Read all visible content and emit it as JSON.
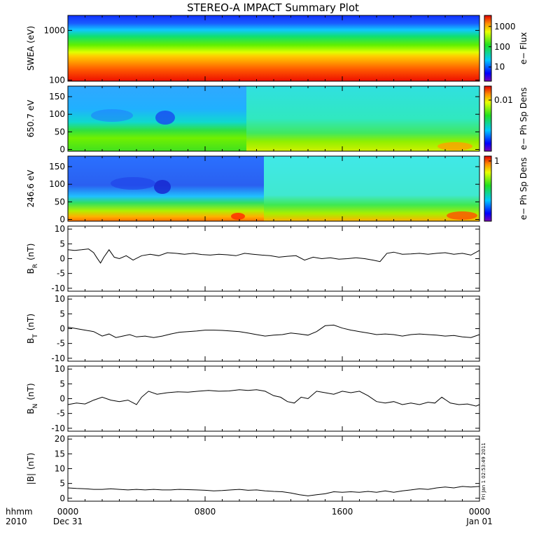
{
  "chart_data": {
    "type": "line",
    "title": "STEREO-A IMPACT Summary Plot",
    "x": {
      "corner_labels": [
        "hhmm",
        "2010"
      ],
      "tick_labels": [
        "0000",
        "0800",
        "1600",
        "0000"
      ],
      "tick_hours": [
        0,
        8,
        16,
        24
      ],
      "date_labels": [
        {
          "hour": 0,
          "label": "Dec 31"
        },
        {
          "hour": 24,
          "label": "Jan 01"
        }
      ],
      "range_hours": [
        0,
        24
      ]
    },
    "timestamp": "Fri Jan 1 02:53:49 2011",
    "panels": [
      {
        "kind": "spectrogram",
        "ylabel": "SWEA (eV)",
        "yscale": "log",
        "ylim": [
          95,
          2000
        ],
        "yticks": [
          {
            "value": 100,
            "label": "100"
          },
          {
            "value": 1000,
            "label": "1000"
          }
        ],
        "colorbar_label": "e− Flux",
        "colorbar_scale": "log",
        "colorbar_range": [
          2,
          3500
        ],
        "colorbar_ticks": [
          {
            "value": 10,
            "label": "10"
          },
          {
            "value": 100,
            "label": "100"
          },
          {
            "value": 1000,
            "label": "1000"
          }
        ],
        "description_bands": [
          {
            "energy": 1800,
            "color": "blue"
          },
          {
            "energy": 1000,
            "color": "cyan"
          },
          {
            "energy": 500,
            "color": "green"
          },
          {
            "energy": 250,
            "color": "yellow"
          },
          {
            "energy": 130,
            "color": "red"
          }
        ]
      },
      {
        "kind": "spectrogram",
        "ylabel": "650.7 eV",
        "ylim": [
          -5,
          180
        ],
        "yticks": [
          0,
          50,
          100,
          150
        ],
        "colorbar_label": "e− Ph Sp Dens",
        "colorbar_scale": "log",
        "colorbar_ticks": [
          {
            "value": 0.01,
            "label": "0.01"
          }
        ]
      },
      {
        "kind": "spectrogram",
        "ylabel": "246.6 eV",
        "ylim": [
          -5,
          180
        ],
        "yticks": [
          0,
          50,
          100,
          150
        ],
        "colorbar_label": "e− Ph Sp Dens",
        "colorbar_scale": "log",
        "colorbar_ticks": [
          {
            "value": 1,
            "label": "1"
          }
        ]
      },
      {
        "kind": "line",
        "ylabel": "B",
        "ylabel_sub": "R",
        "ylabel_unit": "(nT)",
        "ylim": [
          -11,
          11
        ],
        "yticks": [
          -10,
          -5,
          0,
          5,
          10
        ],
        "series": [
          {
            "x": [
              0,
              0.4,
              0.8,
              1.2,
              1.5,
              1.7,
              1.9,
              2.1,
              2.4,
              2.7,
              3.0,
              3.4,
              3.8,
              4.3,
              4.8,
              5.3,
              5.8,
              6.3,
              6.8,
              7.3,
              7.8,
              8.3,
              8.8,
              9.3,
              9.8,
              10.3,
              10.8,
              11.3,
              11.8,
              12.3,
              12.8,
              13.3,
              13.8,
              14.3,
              14.8,
              15.3,
              15.8,
              16.3,
              16.8,
              17.3,
              17.8,
              18.2,
              18.6,
              19.0,
              19.5,
              20.0,
              20.5,
              21.0,
              21.5,
              22.0,
              22.5,
              23.0,
              23.5,
              24.0
            ],
            "values": [
              3.0,
              2.8,
              3.0,
              3.3,
              2.0,
              0.2,
              -1.5,
              0.5,
              3.0,
              0.5,
              0.0,
              1.0,
              -0.5,
              1.0,
              1.5,
              1.0,
              2.0,
              1.8,
              1.5,
              1.8,
              1.4,
              1.2,
              1.5,
              1.3,
              1.0,
              1.8,
              1.5,
              1.2,
              1.0,
              0.5,
              0.8,
              1.0,
              -0.5,
              0.5,
              0.0,
              0.3,
              -0.2,
              0.0,
              0.3,
              0.0,
              -0.5,
              -1.0,
              1.8,
              2.2,
              1.5,
              1.6,
              1.8,
              1.5,
              1.8,
              2.0,
              1.5,
              1.8,
              1.2,
              2.8
            ]
          }
        ]
      },
      {
        "kind": "line",
        "ylabel": "B",
        "ylabel_sub": "T",
        "ylabel_unit": "(nT)",
        "ylim": [
          -11,
          11
        ],
        "yticks": [
          -10,
          -5,
          0,
          5,
          10
        ],
        "series": [
          {
            "x": [
              0,
              0.5,
              1.0,
              1.5,
              2.0,
              2.4,
              2.8,
              3.2,
              3.6,
              4.0,
              4.5,
              5.0,
              5.5,
              6.0,
              6.5,
              7.0,
              7.5,
              8.0,
              8.5,
              9.0,
              9.5,
              10.0,
              10.5,
              11.0,
              11.5,
              12.0,
              12.5,
              13.0,
              13.5,
              14.0,
              14.5,
              15.0,
              15.5,
              16.0,
              16.5,
              17.0,
              17.5,
              18.0,
              18.5,
              19.0,
              19.5,
              20.0,
              20.5,
              21.0,
              21.5,
              22.0,
              22.5,
              23.0,
              23.5,
              24.0
            ],
            "values": [
              0.5,
              0.0,
              -0.5,
              -1.0,
              -2.5,
              -1.8,
              -3.0,
              -2.5,
              -2.0,
              -2.8,
              -2.5,
              -3.0,
              -2.5,
              -1.8,
              -1.2,
              -1.0,
              -0.8,
              -0.5,
              -0.5,
              -0.6,
              -0.8,
              -1.0,
              -1.5,
              -2.0,
              -2.5,
              -2.2,
              -2.0,
              -1.5,
              -1.8,
              -2.2,
              -1.0,
              1.0,
              1.2,
              0.2,
              -0.5,
              -1.0,
              -1.5,
              -2.0,
              -1.8,
              -2.0,
              -2.5,
              -2.0,
              -1.8,
              -2.0,
              -2.2,
              -2.5,
              -2.3,
              -2.8,
              -3.0,
              -2.0
            ]
          }
        ]
      },
      {
        "kind": "line",
        "ylabel": "B",
        "ylabel_sub": "N",
        "ylabel_unit": "(nT)",
        "ylim": [
          -11,
          11
        ],
        "yticks": [
          -10,
          -5,
          0,
          5,
          10
        ],
        "series": [
          {
            "x": [
              0,
              0.5,
              1.0,
              1.5,
              2.0,
              2.5,
              3.0,
              3.5,
              4.0,
              4.3,
              4.7,
              5.2,
              5.8,
              6.4,
              7.0,
              7.6,
              8.2,
              8.8,
              9.4,
              10.0,
              10.5,
              11.0,
              11.5,
              12.0,
              12.4,
              12.8,
              13.2,
              13.6,
              14.0,
              14.5,
              15.0,
              15.5,
              16.0,
              16.5,
              17.0,
              17.5,
              18.0,
              18.5,
              19.0,
              19.5,
              20.0,
              20.5,
              21.0,
              21.4,
              21.8,
              22.3,
              22.8,
              23.3,
              23.8,
              24.0
            ],
            "values": [
              -2.0,
              -1.5,
              -1.8,
              -0.5,
              0.5,
              -0.5,
              -1.0,
              -0.5,
              -2.0,
              0.5,
              2.5,
              1.5,
              2.0,
              2.3,
              2.2,
              2.5,
              2.8,
              2.5,
              2.6,
              3.0,
              2.8,
              3.0,
              2.5,
              1.0,
              0.5,
              -1.0,
              -1.5,
              0.5,
              0.0,
              2.5,
              2.0,
              1.5,
              2.5,
              2.0,
              2.5,
              1.0,
              -1.0,
              -1.5,
              -1.0,
              -2.0,
              -1.5,
              -2.0,
              -1.2,
              -1.5,
              0.5,
              -1.5,
              -2.0,
              -1.8,
              -2.5,
              -2.0
            ]
          }
        ]
      },
      {
        "kind": "line",
        "ylabel": "|B|",
        "ylabel_unit": "(nT)",
        "ylim": [
          -1,
          21
        ],
        "yticks": [
          0,
          5,
          10,
          15,
          20
        ],
        "series": [
          {
            "x": [
              0,
              0.5,
              1.0,
              1.5,
              2.0,
              2.5,
              3.0,
              3.5,
              4.0,
              4.5,
              5.0,
              5.5,
              6.0,
              6.5,
              7.0,
              7.5,
              8.0,
              8.5,
              9.0,
              9.5,
              10.0,
              10.5,
              11.0,
              11.5,
              12.0,
              12.5,
              13.0,
              13.5,
              14.0,
              14.5,
              15.0,
              15.5,
              16.0,
              16.5,
              17.0,
              17.5,
              18.0,
              18.5,
              19.0,
              19.5,
              20.0,
              20.5,
              21.0,
              21.5,
              22.0,
              22.5,
              23.0,
              23.5,
              24.0
            ],
            "values": [
              3.5,
              3.3,
              3.2,
              3.0,
              3.0,
              3.2,
              3.0,
              2.8,
              3.0,
              2.8,
              3.0,
              2.8,
              2.8,
              3.0,
              2.9,
              2.8,
              2.7,
              2.5,
              2.6,
              2.8,
              3.0,
              2.7,
              2.8,
              2.5,
              2.3,
              2.2,
              1.8,
              1.2,
              0.8,
              1.2,
              1.5,
              2.2,
              2.0,
              2.2,
              2.0,
              2.3,
              2.0,
              2.5,
              2.0,
              2.5,
              2.8,
              3.2,
              3.0,
              3.5,
              3.8,
              3.5,
              4.0,
              3.8,
              4.0
            ]
          }
        ]
      }
    ]
  }
}
